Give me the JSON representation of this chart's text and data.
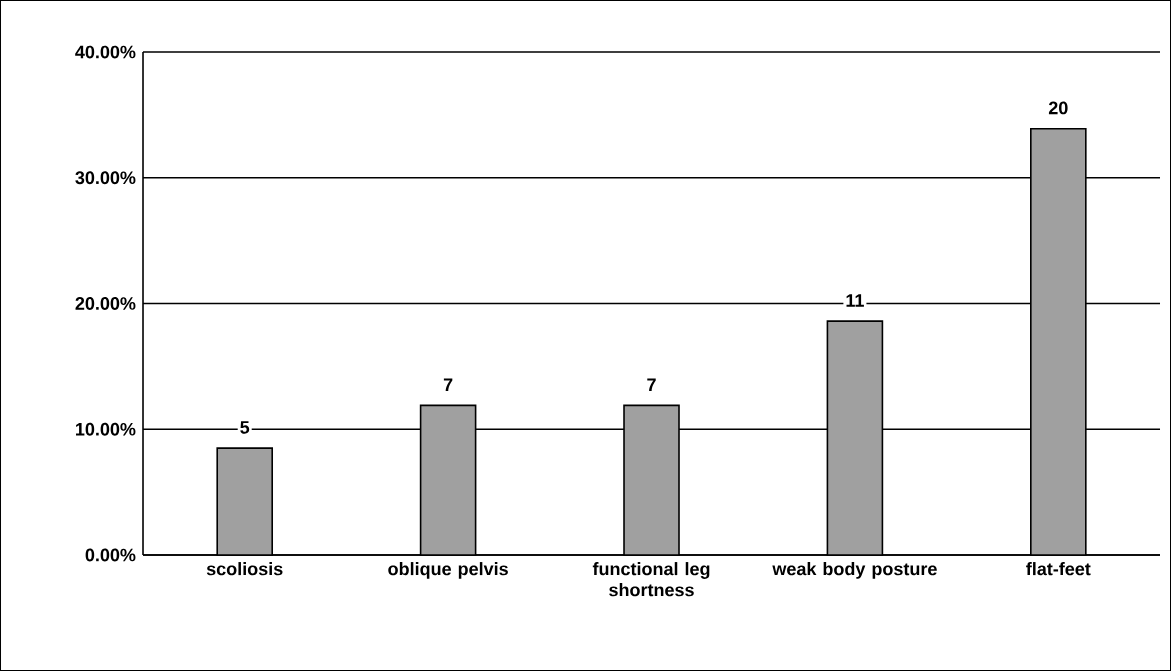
{
  "chart_data": {
    "type": "bar",
    "categories": [
      "scoliosis",
      "oblique pelvis",
      "functional leg shortness",
      "weak body posture",
      "flat-feet"
    ],
    "values": [
      8.5,
      11.9,
      11.9,
      18.6,
      33.9
    ],
    "annotations": [
      {
        "text": "5",
        "x": "scoliosis",
        "y": 8.5
      },
      {
        "text": "7",
        "x": "oblique pelvis",
        "y": 11.9
      },
      {
        "text": "7",
        "x": "functional leg shortness",
        "y": 11.9
      },
      {
        "text": "11",
        "x": "weak body posture",
        "y": 18.6
      },
      {
        "text": "20",
        "x": "flat-feet",
        "y": 33.9
      }
    ],
    "color": "#a0a0a0",
    "ylim": [
      0,
      40
    ],
    "yticks": [
      {
        "value": 0,
        "label": "0.00%"
      },
      {
        "value": 10,
        "label": "10.00%"
      },
      {
        "value": 20,
        "label": "20.00%"
      },
      {
        "value": 30,
        "label": "30.00%"
      },
      {
        "value": 40,
        "label": "40.00%"
      }
    ],
    "grid": "y"
  }
}
